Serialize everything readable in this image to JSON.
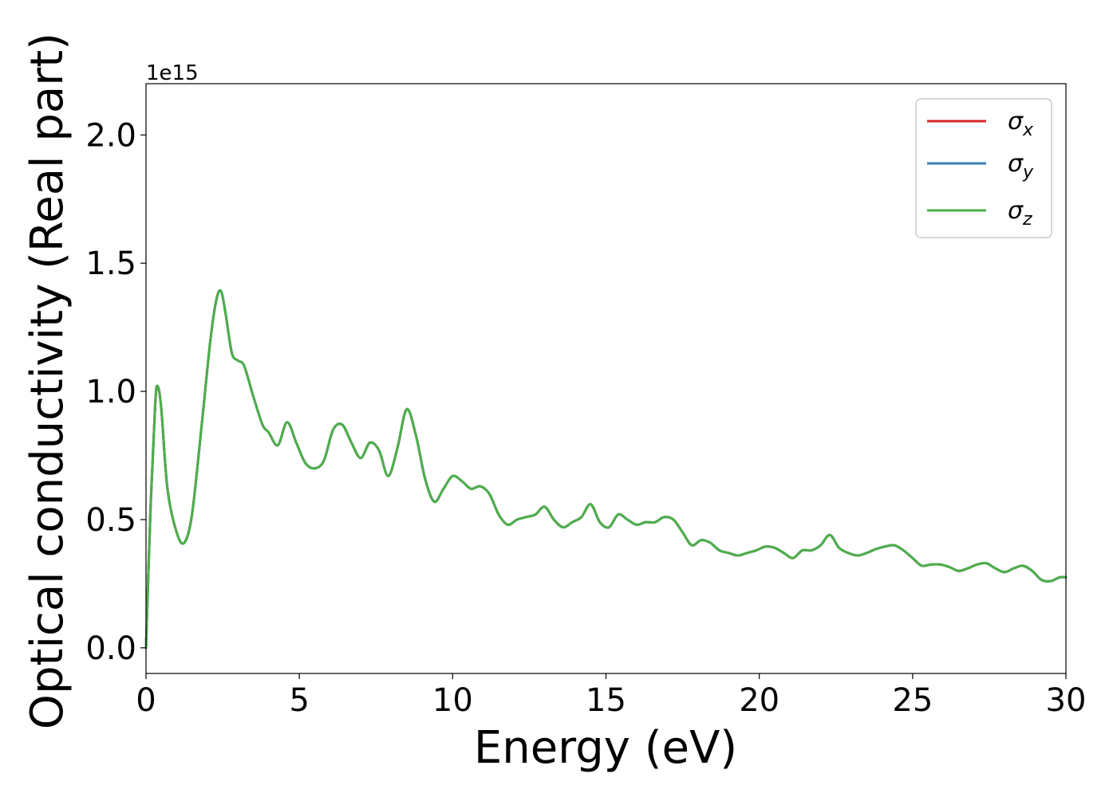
{
  "chart_data": {
    "type": "line",
    "xlabel": "Energy (eV)",
    "ylabel": "Optical conductivity (Real part)",
    "y_offset_label": "1e15",
    "xlim": [
      0,
      30
    ],
    "ylim": [
      -0.1,
      2.2
    ],
    "x_ticks": [
      0,
      5,
      10,
      15,
      20,
      25,
      30
    ],
    "x_tick_labels": [
      "0",
      "5",
      "10",
      "15",
      "20",
      "25",
      "30"
    ],
    "y_ticks": [
      0.0,
      0.5,
      1.0,
      1.5,
      2.0
    ],
    "y_tick_labels": [
      "0.0",
      "0.5",
      "1.0",
      "1.5",
      "2.0"
    ],
    "grid": false,
    "legend_position": "top-right",
    "x": [
      0,
      0.15,
      0.3,
      0.38,
      0.5,
      0.7,
      1.0,
      1.25,
      1.5,
      1.8,
      2.1,
      2.3,
      2.45,
      2.6,
      2.8,
      3.0,
      3.2,
      3.5,
      3.8,
      4.0,
      4.3,
      4.6,
      4.9,
      5.2,
      5.5,
      5.8,
      6.1,
      6.4,
      6.7,
      7.0,
      7.3,
      7.6,
      7.9,
      8.2,
      8.5,
      8.8,
      9.1,
      9.4,
      9.7,
      10.0,
      10.3,
      10.6,
      10.9,
      11.2,
      11.5,
      11.8,
      12.1,
      12.4,
      12.7,
      13.0,
      13.3,
      13.6,
      13.9,
      14.2,
      14.5,
      14.8,
      15.1,
      15.4,
      15.7,
      16.0,
      16.3,
      16.6,
      16.9,
      17.2,
      17.5,
      17.8,
      18.1,
      18.4,
      18.7,
      19.0,
      19.3,
      19.6,
      19.9,
      20.2,
      20.5,
      20.8,
      21.1,
      21.4,
      21.7,
      22.0,
      22.3,
      22.6,
      22.9,
      23.2,
      23.5,
      23.8,
      24.1,
      24.4,
      24.7,
      25.0,
      25.3,
      25.6,
      25.9,
      26.2,
      26.5,
      26.8,
      27.1,
      27.4,
      27.7,
      28.0,
      28.3,
      28.6,
      28.9,
      29.2,
      29.5,
      29.8,
      30.0
    ],
    "series": [
      {
        "name": "σx",
        "color": "#d62728",
        "values": [
          0.0,
          0.55,
          0.95,
          1.02,
          0.93,
          0.62,
          0.45,
          0.41,
          0.52,
          0.85,
          1.2,
          1.36,
          1.39,
          1.3,
          1.15,
          1.12,
          1.1,
          0.98,
          0.87,
          0.84,
          0.79,
          0.88,
          0.8,
          0.72,
          0.7,
          0.73,
          0.85,
          0.87,
          0.8,
          0.74,
          0.8,
          0.77,
          0.67,
          0.78,
          0.93,
          0.83,
          0.66,
          0.57,
          0.62,
          0.67,
          0.65,
          0.62,
          0.63,
          0.6,
          0.52,
          0.48,
          0.5,
          0.51,
          0.52,
          0.55,
          0.5,
          0.47,
          0.49,
          0.51,
          0.56,
          0.49,
          0.47,
          0.52,
          0.5,
          0.48,
          0.49,
          0.49,
          0.51,
          0.5,
          0.45,
          0.4,
          0.42,
          0.41,
          0.38,
          0.37,
          0.36,
          0.37,
          0.38,
          0.395,
          0.39,
          0.37,
          0.35,
          0.38,
          0.38,
          0.4,
          0.44,
          0.39,
          0.37,
          0.36,
          0.37,
          0.385,
          0.395,
          0.4,
          0.38,
          0.35,
          0.32,
          0.325,
          0.325,
          0.315,
          0.3,
          0.31,
          0.325,
          0.33,
          0.31,
          0.295,
          0.31,
          0.32,
          0.3,
          0.265,
          0.26,
          0.275,
          0.275
        ]
      },
      {
        "name": "σy",
        "color": "#377eb8",
        "values": [
          0.0,
          0.55,
          0.95,
          1.02,
          0.93,
          0.62,
          0.45,
          0.41,
          0.52,
          0.85,
          1.2,
          1.36,
          1.39,
          1.3,
          1.15,
          1.12,
          1.1,
          0.98,
          0.87,
          0.84,
          0.79,
          0.88,
          0.8,
          0.72,
          0.7,
          0.73,
          0.85,
          0.87,
          0.8,
          0.74,
          0.8,
          0.77,
          0.67,
          0.78,
          0.93,
          0.83,
          0.66,
          0.57,
          0.62,
          0.67,
          0.65,
          0.62,
          0.63,
          0.6,
          0.52,
          0.48,
          0.5,
          0.51,
          0.52,
          0.55,
          0.5,
          0.47,
          0.49,
          0.51,
          0.56,
          0.49,
          0.47,
          0.52,
          0.5,
          0.48,
          0.49,
          0.49,
          0.51,
          0.5,
          0.45,
          0.4,
          0.42,
          0.41,
          0.38,
          0.37,
          0.36,
          0.37,
          0.38,
          0.395,
          0.39,
          0.37,
          0.35,
          0.38,
          0.38,
          0.4,
          0.44,
          0.39,
          0.37,
          0.36,
          0.37,
          0.385,
          0.395,
          0.4,
          0.38,
          0.35,
          0.32,
          0.325,
          0.325,
          0.315,
          0.3,
          0.31,
          0.325,
          0.33,
          0.31,
          0.295,
          0.31,
          0.32,
          0.3,
          0.265,
          0.26,
          0.275,
          0.275
        ]
      },
      {
        "name": "σz",
        "color": "#4daf4a",
        "values": [
          0.0,
          0.55,
          0.95,
          1.02,
          0.93,
          0.62,
          0.45,
          0.41,
          0.52,
          0.85,
          1.2,
          1.36,
          1.39,
          1.3,
          1.15,
          1.12,
          1.1,
          0.98,
          0.87,
          0.84,
          0.79,
          0.88,
          0.8,
          0.72,
          0.7,
          0.73,
          0.85,
          0.87,
          0.8,
          0.74,
          0.8,
          0.77,
          0.67,
          0.78,
          0.93,
          0.83,
          0.66,
          0.57,
          0.62,
          0.67,
          0.65,
          0.62,
          0.63,
          0.6,
          0.52,
          0.48,
          0.5,
          0.51,
          0.52,
          0.55,
          0.5,
          0.47,
          0.49,
          0.51,
          0.56,
          0.49,
          0.47,
          0.52,
          0.5,
          0.48,
          0.49,
          0.49,
          0.51,
          0.5,
          0.45,
          0.4,
          0.42,
          0.41,
          0.38,
          0.37,
          0.36,
          0.37,
          0.38,
          0.395,
          0.39,
          0.37,
          0.35,
          0.38,
          0.38,
          0.4,
          0.44,
          0.39,
          0.37,
          0.36,
          0.37,
          0.385,
          0.395,
          0.4,
          0.38,
          0.35,
          0.32,
          0.325,
          0.325,
          0.315,
          0.3,
          0.31,
          0.325,
          0.33,
          0.31,
          0.295,
          0.31,
          0.32,
          0.3,
          0.265,
          0.26,
          0.275,
          0.275
        ]
      }
    ],
    "legend": [
      {
        "symbol": "σ",
        "subscript": "x",
        "color": "#d62728"
      },
      {
        "symbol": "σ",
        "subscript": "y",
        "color": "#377eb8"
      },
      {
        "symbol": "σ",
        "subscript": "z",
        "color": "#4daf4a"
      }
    ]
  }
}
